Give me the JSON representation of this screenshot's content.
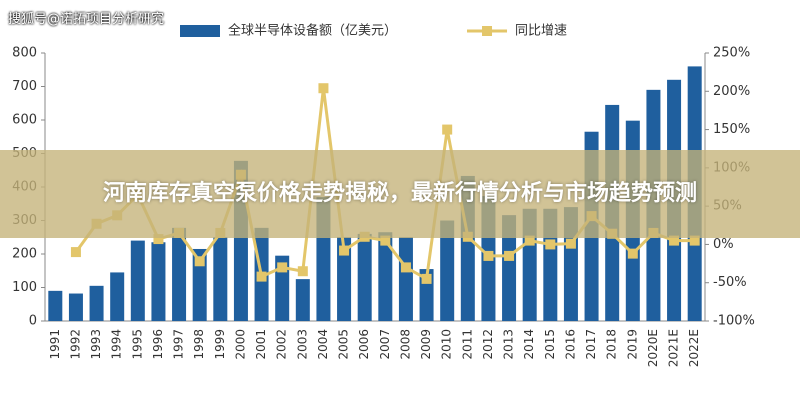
{
  "watermark": "搜狐号@诺拓项目分析研究",
  "overlay_title": "河南库存真空泵价格走势揭秘，最新行情分析与市场趋势预测",
  "chart_data": {
    "type": "bar_line",
    "categories": [
      "1991",
      "1992",
      "1993",
      "1994",
      "1995",
      "1996",
      "1997",
      "1998",
      "1999",
      "2000",
      "2001",
      "2002",
      "2003",
      "2004",
      "2005",
      "2006",
      "2007",
      "2008",
      "2009",
      "2010",
      "2011",
      "2012",
      "2013",
      "2014",
      "2015",
      "2016",
      "2017",
      "2018",
      "2019",
      "2020E",
      "2021E",
      "2022E"
    ],
    "series": [
      {
        "name": "全球半导体设备额（亿美元）",
        "color": "#1f5f9e",
        "type": "bar",
        "values": [
          90,
          82,
          105,
          145,
          240,
          235,
          278,
          215,
          250,
          478,
          278,
          195,
          125,
          370,
          250,
          260,
          265,
          250,
          155,
          300,
          433,
          373,
          316,
          335,
          335,
          340,
          565,
          645,
          598,
          690,
          720,
          760
        ]
      },
      {
        "name": "同比增速",
        "color": "#e3c66a",
        "type": "line",
        "axis": "y2",
        "values": [
          null,
          -10,
          27,
          38,
          65,
          7,
          15,
          -22,
          15,
          91,
          -42,
          -30,
          -35,
          204,
          -8,
          10,
          5,
          -30,
          -45,
          150,
          10,
          -15,
          -15,
          5,
          0,
          1,
          37,
          14,
          -12,
          15,
          5,
          5
        ]
      }
    ],
    "ylim": [
      0,
      800
    ],
    "yticks": [
      0,
      100,
      200,
      300,
      400,
      500,
      600,
      700,
      800
    ],
    "y2lim": [
      -100,
      250
    ],
    "y2ticks": [
      {
        "value": -100,
        "label": "-100%"
      },
      {
        "value": -50,
        "label": "-50%"
      },
      {
        "value": 0,
        "label": "0%"
      },
      {
        "value": 50,
        "label": "50%"
      },
      {
        "value": 100,
        "label": "100%"
      },
      {
        "value": 150,
        "label": "150%"
      },
      {
        "value": 200,
        "label": "200%"
      },
      {
        "value": 250,
        "label": "250%"
      }
    ],
    "legend": "top"
  }
}
